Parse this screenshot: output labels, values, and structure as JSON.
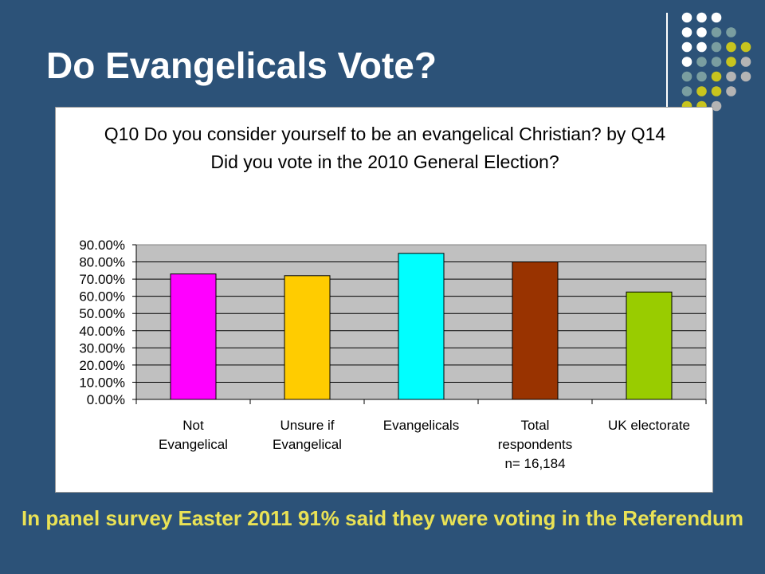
{
  "slide": {
    "title": "Do Evangelicals Vote?",
    "footer_note": "In panel survey Easter 2011 91% said they were voting in the Referendum"
  },
  "colors": {
    "background": "#2c5278",
    "footer_text": "#eae255",
    "plot_area": "#c0c0c0",
    "dot_white": "#ffffff",
    "dot_teal": "#7a9ea0",
    "dot_olive": "#c8c41e",
    "dot_gray": "#b4b4b4"
  },
  "chart_data": {
    "type": "bar",
    "title": "Q10 Do you consider yourself to be an evangelical Christian? by Q14 Did you vote in the 2010 General Election?",
    "categories": [
      [
        "Not",
        "Evangelical"
      ],
      [
        "Unsure if",
        "Evangelical"
      ],
      [
        "Evangelicals"
      ],
      [
        "Total",
        "respondents",
        "n= 16,184"
      ],
      [
        "UK electorate"
      ]
    ],
    "values": [
      73,
      72,
      85,
      80,
      62.5
    ],
    "bar_colors": [
      "#ff00ff",
      "#ffcc00",
      "#00ffff",
      "#993300",
      "#99cc00"
    ],
    "ylim": [
      0,
      90
    ],
    "yticks": [
      "0.00%",
      "10.00%",
      "20.00%",
      "30.00%",
      "40.00%",
      "50.00%",
      "60.00%",
      "70.00%",
      "80.00%",
      "90.00%"
    ],
    "grid": true,
    "legend": "none",
    "xlabel": "",
    "ylabel": ""
  }
}
